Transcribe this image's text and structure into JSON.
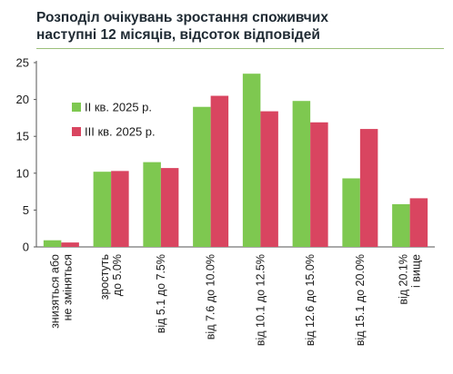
{
  "title_line1": "Розподіл очікувань зростання споживчих",
  "title_line2": "наступні 12 місяців, відсоток відповідей",
  "chart_data": {
    "type": "bar",
    "categories": [
      [
        "знизяться або",
        "не зміняться"
      ],
      [
        "зростуть",
        "до 5.0%"
      ],
      [
        "від 5.1 до 7.5%"
      ],
      [
        "від 7.6 до 10.0%"
      ],
      [
        "від 10.1 до 12.5%"
      ],
      [
        "від 12.6 до 15.0%"
      ],
      [
        "від 15.1 до 20.0%"
      ],
      [
        "від 20.1%",
        "і вище"
      ]
    ],
    "series": [
      {
        "name": "II кв. 2025 р.",
        "color": "#7ec850",
        "values": [
          0.9,
          10.2,
          11.5,
          19.0,
          23.5,
          19.8,
          9.3,
          5.8
        ]
      },
      {
        "name": "III кв. 2025 р.",
        "color": "#d94560",
        "values": [
          0.6,
          10.3,
          10.7,
          20.5,
          18.4,
          16.9,
          16.0,
          6.6
        ]
      }
    ],
    "ylim": [
      0,
      25
    ],
    "yticks": [
      0,
      5,
      10,
      15,
      20,
      25
    ],
    "legend_position": "top-left",
    "grid": false
  }
}
